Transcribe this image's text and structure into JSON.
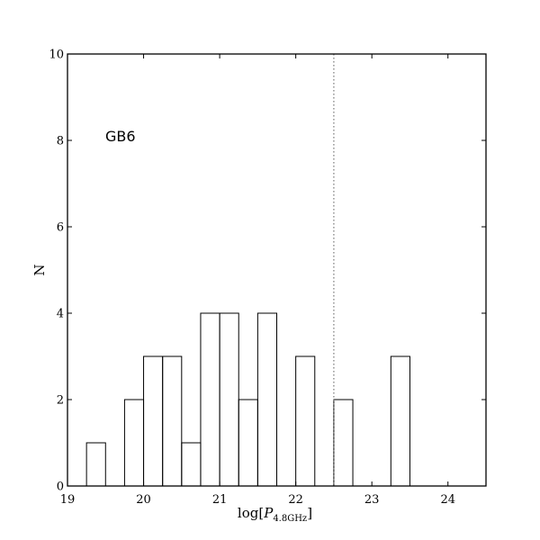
{
  "chart_data": {
    "type": "bar",
    "subtype": "histogram",
    "title": "",
    "annotation": "GB6",
    "xlabel": {
      "main": "log[",
      "symbol": "P",
      "subscript": "4.8GHz",
      "close": "]"
    },
    "ylabel": "N",
    "xlim": [
      19,
      24.5
    ],
    "ylim": [
      0,
      10
    ],
    "xticks": [
      "19",
      "20",
      "21",
      "22",
      "23",
      "24"
    ],
    "yticks": [
      "0",
      "2",
      "4",
      "6",
      "8",
      "10"
    ],
    "bin_width": 0.25,
    "bins": [
      {
        "start": 19.25,
        "value": 1
      },
      {
        "start": 19.5,
        "value": 0
      },
      {
        "start": 19.75,
        "value": 2
      },
      {
        "start": 20.0,
        "value": 3
      },
      {
        "start": 20.25,
        "value": 3
      },
      {
        "start": 20.5,
        "value": 1
      },
      {
        "start": 20.75,
        "value": 4
      },
      {
        "start": 21.0,
        "value": 4
      },
      {
        "start": 21.25,
        "value": 2
      },
      {
        "start": 21.5,
        "value": 4
      },
      {
        "start": 21.75,
        "value": 0
      },
      {
        "start": 22.0,
        "value": 3
      },
      {
        "start": 22.25,
        "value": 0
      },
      {
        "start": 22.5,
        "value": 2
      },
      {
        "start": 22.75,
        "value": 0
      },
      {
        "start": 23.0,
        "value": 0
      },
      {
        "start": 23.25,
        "value": 3
      },
      {
        "start": 23.5,
        "value": 0
      }
    ],
    "reference_line": {
      "x": 22.5,
      "style": "dotted"
    },
    "grid": false,
    "legend": "none",
    "colors": {
      "bar_edge": "#000000",
      "bar_fill": "none",
      "reference_line": "#777777"
    }
  }
}
